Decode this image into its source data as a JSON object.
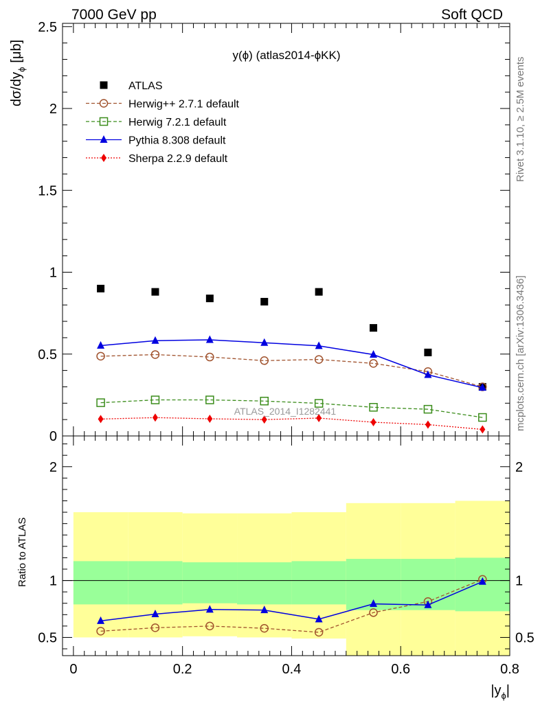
{
  "header": {
    "left": "7000 GeV pp",
    "right": "Soft QCD"
  },
  "side_text": {
    "rivet": "Rivet 3.1.10, ≥ 2.5M events",
    "mcplots": "mcplots.cern.ch [arXiv:1306.3436]"
  },
  "chart_data": [
    {
      "type": "scatter",
      "title": "y(ϕ) (atlas2014-ϕKK)",
      "watermark": "ATLAS_2014_I1282441",
      "ylabel": "dσ/dyϕ [μb]",
      "ylabel_main": "dσ/dy",
      "ylabel_sub": "ϕ",
      "ylabel_unit": "[μb]",
      "xlim": [
        -0.02,
        0.8
      ],
      "ylim": [
        0,
        2.52
      ],
      "yticks": [
        "0",
        "0.5",
        "1",
        "1.5",
        "2",
        "2.5"
      ],
      "ytick_values": [
        0,
        0.5,
        1,
        1.5,
        2,
        2.5
      ],
      "legend_position": "top-left",
      "x": [
        0.05,
        0.15,
        0.25,
        0.35,
        0.45,
        0.55,
        0.65,
        0.75
      ],
      "series": [
        {
          "name": "ATLAS",
          "color": "#000000",
          "marker": "square",
          "line": "none",
          "values": [
            0.9,
            0.88,
            0.84,
            0.82,
            0.88,
            0.66,
            0.51,
            0.3
          ]
        },
        {
          "name": "Herwig++ 2.7.1 default",
          "color": "#a0522d",
          "marker": "open-circle",
          "line": "dashed",
          "values": [
            0.487,
            0.497,
            0.482,
            0.46,
            0.467,
            0.443,
            0.393,
            0.3
          ]
        },
        {
          "name": "Herwig 7.2.1 default",
          "color": "#3a8c1a",
          "marker": "open-square",
          "line": "dashed",
          "values": [
            0.203,
            0.22,
            0.22,
            0.213,
            0.199,
            0.175,
            0.163,
            0.113
          ]
        },
        {
          "name": "Pythia 8.308 default",
          "color": "#0000e0",
          "marker": "triangle",
          "line": "solid",
          "values": [
            0.552,
            0.582,
            0.587,
            0.569,
            0.55,
            0.497,
            0.373,
            0.295
          ]
        },
        {
          "name": "Sherpa 2.2.9 default",
          "color": "#ee0000",
          "marker": "diamond",
          "line": "dotted",
          "values": [
            0.103,
            0.112,
            0.105,
            0.1,
            0.109,
            0.084,
            0.069,
            0.04
          ]
        }
      ]
    },
    {
      "type": "line",
      "ylabel": "Ratio to ATLAS",
      "xlabel": "|yϕ|",
      "xlabel_main": "|y",
      "xlabel_sub": "ϕ",
      "xlabel_end": "|",
      "xlim": [
        -0.02,
        0.8
      ],
      "ylim": [
        0.34,
        2.27
      ],
      "xticks": [
        "0",
        "0.2",
        "0.4",
        "0.6",
        "0.8"
      ],
      "xtick_values": [
        0,
        0.2,
        0.4,
        0.6,
        0.8
      ],
      "yticks": [
        "0.5",
        "1",
        "2"
      ],
      "ytick_values": [
        0.5,
        1,
        2
      ],
      "reference": 1,
      "bins": [
        [
          0.0,
          0.1
        ],
        [
          0.1,
          0.2
        ],
        [
          0.2,
          0.3
        ],
        [
          0.3,
          0.4
        ],
        [
          0.4,
          0.5
        ],
        [
          0.5,
          0.6
        ],
        [
          0.6,
          0.7
        ],
        [
          0.7,
          0.8
        ]
      ],
      "band_colors": {
        "outer": "#ffff99",
        "inner": "#99ff99"
      },
      "band_outer": [
        [
          0.5,
          1.6
        ],
        [
          0.5,
          1.6
        ],
        [
          0.51,
          1.59
        ],
        [
          0.5,
          1.59
        ],
        [
          0.49,
          1.6
        ],
        [
          0.34,
          1.68
        ],
        [
          0.34,
          1.68
        ],
        [
          0.34,
          1.7
        ]
      ],
      "band_inner": [
        [
          0.79,
          1.17
        ],
        [
          0.79,
          1.17
        ],
        [
          0.8,
          1.16
        ],
        [
          0.79,
          1.16
        ],
        [
          0.79,
          1.17
        ],
        [
          0.74,
          1.19
        ],
        [
          0.74,
          1.19
        ],
        [
          0.73,
          1.2
        ]
      ],
      "x": [
        0.05,
        0.15,
        0.25,
        0.35,
        0.45,
        0.55,
        0.65,
        0.75
      ],
      "series": [
        {
          "name": "Herwig++ 2.7.1 default",
          "color": "#a0522d",
          "marker": "open-circle",
          "line": "dashed",
          "values": [
            0.555,
            0.585,
            0.6,
            0.58,
            0.545,
            0.718,
            0.815,
            1.01
          ]
        },
        {
          "name": "Pythia 8.308 default",
          "color": "#0000e0",
          "marker": "triangle",
          "line": "solid",
          "values": [
            0.645,
            0.705,
            0.745,
            0.74,
            0.66,
            0.795,
            0.785,
            0.99
          ]
        }
      ]
    }
  ]
}
